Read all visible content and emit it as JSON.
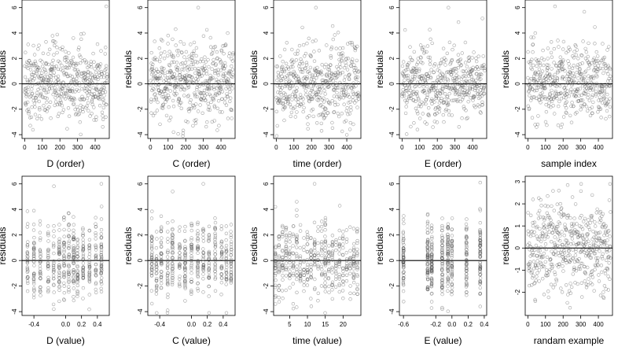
{
  "chart_data": [
    {
      "type": "scatter",
      "xlabel": "D (order)",
      "ylabel": "residuals",
      "xticks": [
        0,
        100,
        200,
        300,
        400
      ],
      "yticks": [
        -4,
        -2,
        0,
        2,
        4,
        6
      ],
      "xlim": [
        -15,
        480
      ],
      "ylim": [
        -4.3,
        6.6
      ],
      "ref_y": 0,
      "n": 470,
      "pattern": "order",
      "series": [
        {
          "name": "",
          "x": [
            5,
            20,
            41,
            62,
            84,
            105,
            126,
            148,
            169,
            190,
            212,
            233,
            254,
            276,
            297,
            318,
            340,
            361,
            382,
            404,
            425,
            446,
            463
          ],
          "y": [
            -1.5,
            3.1,
            -0.8,
            1.6,
            -1.9,
            2.4,
            0.3,
            -2.7,
            1.2,
            0.6,
            -0.4,
            2.1,
            -1.0,
            3.6,
            0.8,
            -1.7,
            0.2,
            -0.9,
            -1.3,
            0.4,
            -0.6,
            -0.3,
            6.1
          ]
        }
      ]
    },
    {
      "type": "scatter",
      "xlabel": "C (order)",
      "ylabel": "residuals",
      "xticks": [
        0,
        100,
        200,
        300,
        400
      ],
      "yticks": [
        -4,
        -2,
        0,
        2,
        4,
        6
      ],
      "xlim": [
        -15,
        480
      ],
      "ylim": [
        -4.3,
        6.6
      ],
      "ref_y": 0,
      "n": 470,
      "pattern": "order",
      "series": [
        {
          "name": "",
          "x": [
            4,
            25,
            46,
            67,
            88,
            110,
            131,
            152,
            173,
            194,
            216,
            237,
            258,
            271,
            300,
            321,
            342,
            363,
            385,
            406,
            427,
            448,
            466
          ],
          "y": [
            -2.3,
            1.9,
            -0.5,
            3.4,
            -1.1,
            0.9,
            -3.8,
            2.6,
            -0.2,
            1.4,
            -2.0,
            0.5,
            -1.6,
            6.0,
            1.1,
            -0.8,
            2.9,
            -2.9,
            0.7,
            -1.2,
            3.1,
            -0.4,
            1.8
          ]
        }
      ]
    },
    {
      "type": "scatter",
      "xlabel": "time (order)",
      "ylabel": "residuals",
      "xticks": [
        0,
        100,
        200,
        300,
        400
      ],
      "yticks": [
        -4,
        -2,
        0,
        2,
        4,
        6
      ],
      "xlim": [
        -15,
        480
      ],
      "ylim": [
        -4.3,
        6.6
      ],
      "ref_y": 0,
      "n": 470,
      "pattern": "order",
      "series": [
        {
          "name": "",
          "x": [
            6,
            27,
            48,
            69,
            90,
            111,
            132,
            153,
            174,
            196,
            217,
            225,
            260,
            281,
            302,
            323,
            344,
            365,
            387,
            408,
            429,
            450,
            467
          ],
          "y": [
            -3.3,
            0.8,
            2.7,
            -1.4,
            1.9,
            -0.6,
            3.0,
            -2.2,
            0.4,
            2.2,
            -1.0,
            6.0,
            1.5,
            -2.5,
            0.9,
            3.5,
            -0.7,
            1.3,
            -3.0,
            2.0,
            -0.3,
            2.8,
            -1.2
          ]
        }
      ]
    },
    {
      "type": "scatter",
      "xlabel": "E (order)",
      "ylabel": "residuals",
      "xticks": [
        0,
        100,
        200,
        300,
        400
      ],
      "yticks": [
        -4,
        -2,
        0,
        2,
        4,
        6
      ],
      "xlim": [
        -15,
        480
      ],
      "ylim": [
        -4.3,
        6.6
      ],
      "ref_y": 0,
      "n": 470,
      "pattern": "order",
      "series": [
        {
          "name": "",
          "x": [
            3,
            24,
            45,
            66,
            87,
            108,
            129,
            150,
            171,
            192,
            213,
            234,
            256,
            263,
            298,
            319,
            340,
            361,
            382,
            403,
            424,
            445,
            464
          ],
          "y": [
            1.4,
            -1.8,
            2.9,
            -0.6,
            -3.6,
            1.7,
            0.3,
            -2.4,
            3.2,
            -0.9,
            1.0,
            -1.5,
            2.4,
            6.0,
            -0.4,
            1.8,
            -2.7,
            0.6,
            2.1,
            -1.1,
            0.8,
            -0.5,
            1.5
          ]
        }
      ]
    },
    {
      "type": "scatter",
      "xlabel": "sample index",
      "ylabel": "residuals",
      "xticks": [
        0,
        100,
        200,
        300,
        400
      ],
      "yticks": [
        -4,
        -2,
        0,
        2,
        4,
        6
      ],
      "xlim": [
        -15,
        480
      ],
      "ylim": [
        -4.3,
        6.6
      ],
      "ref_y": 0,
      "n": 470,
      "pattern": "order",
      "series": [
        {
          "name": "",
          "x": [
            7,
            28,
            49,
            70,
            91,
            112,
            133,
            154,
            175,
            197,
            218,
            239,
            260,
            281,
            302,
            323,
            344,
            365,
            386,
            407,
            428,
            449,
            468
          ],
          "y": [
            -2.0,
            2.5,
            -3.4,
            0.7,
            1.9,
            -1.2,
            3.3,
            6.1,
            -0.8,
            1.5,
            -1.9,
            2.7,
            0.2,
            -0.6,
            -1.3,
            0.9,
            3.2,
            -2.3,
            1.0,
            -0.4,
            2.0,
            -1.6,
            0.6
          ]
        }
      ]
    },
    {
      "type": "scatter",
      "xlabel": "D (value)",
      "ylabel": "residuals",
      "xticks": [
        -0.4,
        0.0,
        0.2,
        0.4
      ],
      "xticklabels": [
        "-0.4",
        "0.0",
        "0.2",
        "0.4"
      ],
      "yticks": [
        -4,
        -2,
        0,
        2,
        4,
        6
      ],
      "xlim": [
        -0.55,
        0.55
      ],
      "ylim": [
        -4.3,
        6.6
      ],
      "ref_y": 0,
      "n": 470,
      "pattern": "clusters",
      "x_levels": [
        -0.48,
        -0.4,
        -0.32,
        -0.22,
        -0.15,
        -0.08,
        -0.02,
        0.04,
        0.1,
        0.15,
        0.22,
        0.3,
        0.38,
        0.45
      ],
      "series": [
        {
          "name": "",
          "x": [
            -0.48,
            -0.4,
            -0.32,
            -0.22,
            -0.15,
            -0.08,
            -0.02,
            0.04,
            0.1,
            0.15,
            0.22,
            0.3,
            0.38,
            0.45
          ],
          "y": [
            -2.4,
            3.9,
            -1.0,
            2.2,
            -3.8,
            1.5,
            3.4,
            -1.7,
            2.1,
            -2.6,
            0.9,
            -0.4,
            -0.8,
            6.0
          ]
        }
      ]
    },
    {
      "type": "scatter",
      "xlabel": "C (value)",
      "ylabel": "residuals",
      "xticks": [
        -0.4,
        0.0,
        0.2,
        0.4
      ],
      "xticklabels": [
        "-0.4",
        "0.0",
        "0.2",
        "0.4"
      ],
      "yticks": [
        -4,
        -2,
        0,
        2,
        4,
        6
      ],
      "xlim": [
        -0.55,
        0.55
      ],
      "ylim": [
        -4.3,
        6.6
      ],
      "ref_y": 0,
      "n": 470,
      "pattern": "clusters",
      "x_levels": [
        -0.5,
        -0.44,
        -0.38,
        -0.3,
        -0.24,
        -0.15,
        -0.08,
        0.0,
        0.08,
        0.15,
        0.22,
        0.3,
        0.38,
        0.44,
        0.5
      ],
      "series": [
        {
          "name": "",
          "x": [
            -0.5,
            -0.44,
            -0.38,
            -0.3,
            -0.24,
            -0.15,
            -0.08,
            0.0,
            0.08,
            0.15,
            0.22,
            0.3,
            0.38,
            0.44,
            0.5
          ],
          "y": [
            3.3,
            -2.1,
            1.1,
            -3.9,
            2.4,
            0.6,
            -1.4,
            2.9,
            -0.7,
            6.0,
            -2.8,
            1.8,
            -1.1,
            0.4,
            -0.9
          ]
        }
      ]
    },
    {
      "type": "scatter",
      "xlabel": "time (value)",
      "ylabel": "residuals",
      "xticks": [
        5,
        10,
        15,
        20
      ],
      "yticks": [
        -4,
        -2,
        0,
        2,
        4,
        6
      ],
      "xlim": [
        0.5,
        25
      ],
      "ylim": [
        -4.3,
        6.6
      ],
      "ref_y": 0,
      "n": 470,
      "pattern": "clusters",
      "x_levels": [
        1,
        2,
        3,
        4,
        5,
        6,
        7,
        8,
        9,
        10,
        11,
        12,
        13,
        14,
        15,
        16,
        17,
        18,
        19,
        20,
        21,
        22,
        23,
        24
      ],
      "series": [
        {
          "name": "",
          "x": [
            1,
            3,
            5,
            7,
            9,
            11,
            12,
            13,
            15,
            17,
            19,
            21,
            23,
            24
          ],
          "y": [
            -3.4,
            2.2,
            -1.2,
            3.5,
            -2.4,
            0.8,
            6.0,
            -0.5,
            2.8,
            -3.0,
            1.3,
            -1.6,
            2.5,
            -0.7
          ]
        }
      ]
    },
    {
      "type": "scatter",
      "xlabel": "E (value)",
      "ylabel": "residuals",
      "xticks": [
        -0.6,
        -0.2,
        0.0,
        0.2,
        0.4
      ],
      "xticklabels": [
        "-0.6",
        "-0.2",
        "0.0",
        "0.2",
        "0.4"
      ],
      "yticks": [
        -4,
        -2,
        0,
        2,
        4,
        6
      ],
      "xlim": [
        -0.65,
        0.43
      ],
      "ylim": [
        -4.3,
        6.6
      ],
      "ref_y": 0,
      "n": 470,
      "pattern": "clusters",
      "x_levels": [
        -0.6,
        -0.3,
        -0.25,
        -0.12,
        -0.05,
        0.0,
        0.18,
        0.35
      ],
      "series": [
        {
          "name": "",
          "x": [
            -0.6,
            -0.6,
            -0.3,
            -0.25,
            -0.12,
            -0.12,
            -0.05,
            0.0,
            0.18,
            0.35,
            0.35
          ],
          "y": [
            3.2,
            -2.4,
            1.6,
            -1.5,
            3.3,
            -3.8,
            0.9,
            -1.0,
            -2.5,
            6.1,
            -3.6
          ]
        }
      ]
    },
    {
      "type": "scatter",
      "xlabel": "randam example",
      "ylabel": "residuals",
      "xticks": [
        0,
        100,
        200,
        300,
        400
      ],
      "yticks": [
        -2,
        -1,
        0,
        1,
        2,
        3
      ],
      "xlim": [
        -15,
        480
      ],
      "ylim": [
        -3.05,
        3.25
      ],
      "ref_y": 0,
      "n": 470,
      "pattern": "random",
      "series": [
        {
          "name": "",
          "x": [
            8,
            29,
            50,
            71,
            92,
            113,
            134,
            155,
            176,
            197,
            218,
            239,
            260,
            281,
            302,
            323,
            344,
            365,
            386,
            407,
            428,
            449,
            466
          ],
          "y": [
            -1.7,
            2.2,
            -0.9,
            1.4,
            -2.1,
            0.5,
            1.9,
            -1.2,
            2.6,
            -0.4,
            0.8,
            -2.7,
            1.1,
            -0.6,
            2.9,
            -1.5,
            0.3,
            2.4,
            -0.8,
            1.6,
            -2.0,
            0.6,
            2.9
          ]
        }
      ]
    }
  ]
}
